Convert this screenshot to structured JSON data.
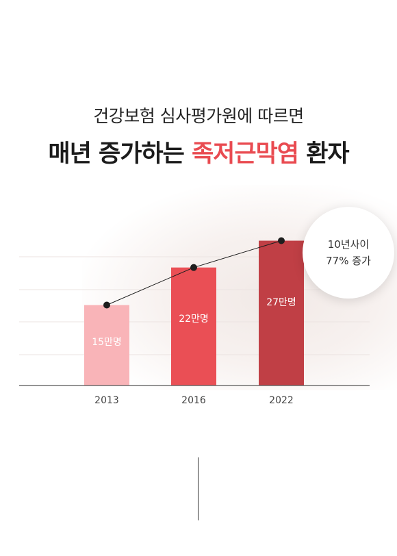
{
  "header": {
    "subtitle": "건강보험 심사평가원에 따르면",
    "title_prefix": "매년 증가하는",
    "title_highlight": "족저근막염",
    "title_suffix": "환자"
  },
  "callout": {
    "line1": "10년사이",
    "line2": "77% 증가"
  },
  "chart_data": {
    "type": "bar",
    "categories": [
      "2013",
      "2016",
      "2022"
    ],
    "values": [
      15,
      22,
      27
    ],
    "value_labels": [
      "15만명",
      "22만명",
      "27만명"
    ],
    "ylim": [
      0,
      30
    ],
    "grid": true,
    "trend_line": true,
    "bar_colors": [
      "#f9b4b8",
      "#ea4f55",
      "#c03f45"
    ],
    "label_colors": [
      "#ffffff",
      "#ffffff",
      "#ffffff"
    ]
  },
  "colors": {
    "highlight": "#e94b51",
    "trend_line": "#1e1e1e"
  }
}
